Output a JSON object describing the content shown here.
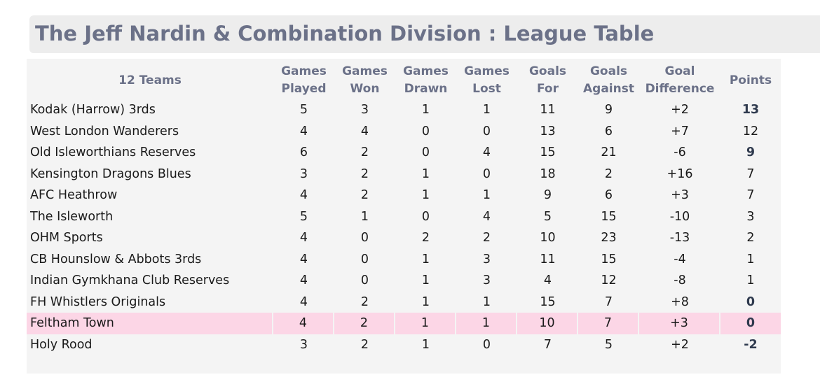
{
  "title": "The Jeff Nardin & Combination Division :  League Table",
  "colors": {
    "title_text": "#6b7188",
    "title_bg": "#ededed",
    "panel_bg": "#f4f4f4",
    "highlight_row": "#fcd6e6"
  },
  "table": {
    "headers": {
      "team": "12 Teams",
      "played": [
        "Games",
        "Played"
      ],
      "won": [
        "Games",
        "Won"
      ],
      "drawn": [
        "Games",
        "Drawn"
      ],
      "lost": [
        "Games",
        "Lost"
      ],
      "gf": [
        "Goals",
        "For"
      ],
      "ga": [
        "Goals",
        "Against"
      ],
      "gd": [
        "Goal",
        "Difference"
      ],
      "points": "Points"
    },
    "rows": [
      {
        "team": "Kodak (Harrow) 3rds",
        "played": "5",
        "won": "3",
        "drawn": "1",
        "lost": "1",
        "gf": "11",
        "ga": "9",
        "gd": "+2",
        "points": "13",
        "points_bold": true,
        "highlight": false
      },
      {
        "team": "West London Wanderers",
        "played": "4",
        "won": "4",
        "drawn": "0",
        "lost": "0",
        "gf": "13",
        "ga": "6",
        "gd": "+7",
        "points": "12",
        "points_bold": false,
        "highlight": false
      },
      {
        "team": "Old Isleworthians Reserves",
        "played": "6",
        "won": "2",
        "drawn": "0",
        "lost": "4",
        "gf": "15",
        "ga": "21",
        "gd": "-6",
        "points": "9",
        "points_bold": true,
        "highlight": false
      },
      {
        "team": "Kensington Dragons Blues",
        "played": "3",
        "won": "2",
        "drawn": "1",
        "lost": "0",
        "gf": "18",
        "ga": "2",
        "gd": "+16",
        "points": "7",
        "points_bold": false,
        "highlight": false
      },
      {
        "team": "AFC Heathrow",
        "played": "4",
        "won": "2",
        "drawn": "1",
        "lost": "1",
        "gf": "9",
        "ga": "6",
        "gd": "+3",
        "points": "7",
        "points_bold": false,
        "highlight": false
      },
      {
        "team": "The Isleworth",
        "played": "5",
        "won": "1",
        "drawn": "0",
        "lost": "4",
        "gf": "5",
        "ga": "15",
        "gd": "-10",
        "points": "3",
        "points_bold": false,
        "highlight": false
      },
      {
        "team": "OHM Sports",
        "played": "4",
        "won": "0",
        "drawn": "2",
        "lost": "2",
        "gf": "10",
        "ga": "23",
        "gd": "-13",
        "points": "2",
        "points_bold": false,
        "highlight": false
      },
      {
        "team": "CB Hounslow & Abbots 3rds",
        "played": "4",
        "won": "0",
        "drawn": "1",
        "lost": "3",
        "gf": "11",
        "ga": "15",
        "gd": "-4",
        "points": "1",
        "points_bold": false,
        "highlight": false
      },
      {
        "team": "Indian Gymkhana Club Reserves",
        "played": "4",
        "won": "0",
        "drawn": "1",
        "lost": "3",
        "gf": "4",
        "ga": "12",
        "gd": "-8",
        "points": "1",
        "points_bold": false,
        "highlight": false
      },
      {
        "team": "FH Whistlers Originals",
        "played": "4",
        "won": "2",
        "drawn": "1",
        "lost": "1",
        "gf": "15",
        "ga": "7",
        "gd": "+8",
        "points": "0",
        "points_bold": true,
        "highlight": false
      },
      {
        "team": "Feltham Town",
        "played": "4",
        "won": "2",
        "drawn": "1",
        "lost": "1",
        "gf": "10",
        "ga": "7",
        "gd": "+3",
        "points": "0",
        "points_bold": true,
        "highlight": true
      },
      {
        "team": "Holy Rood",
        "played": "3",
        "won": "2",
        "drawn": "1",
        "lost": "0",
        "gf": "7",
        "ga": "5",
        "gd": "+2",
        "points": "-2",
        "points_bold": true,
        "highlight": false
      }
    ]
  }
}
